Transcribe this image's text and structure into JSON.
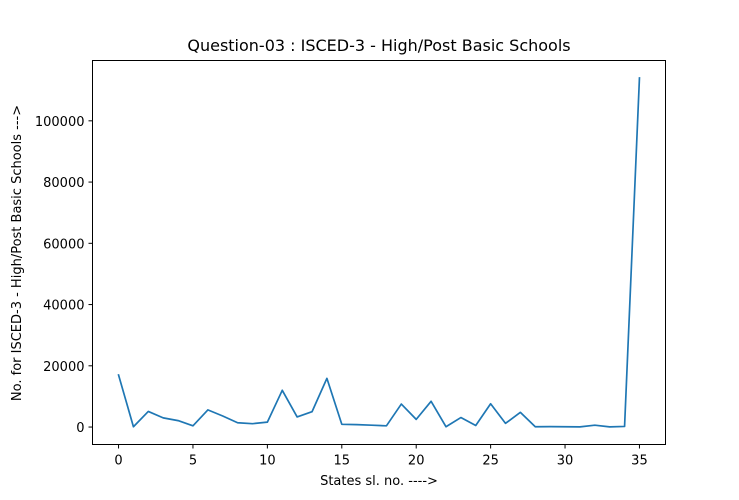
{
  "chart_data": {
    "type": "line",
    "title": "Question-03 : ISCED-3 - High/Post Basic Schools",
    "xlabel": "States sl. no. ---->",
    "ylabel": "No. for ISCED-3 - High/Post Basic Schools --->",
    "xlim": [
      -1.75,
      36.75
    ],
    "ylim": [
      -5700,
      119700
    ],
    "x_ticks": [
      0,
      5,
      10,
      15,
      20,
      25,
      30,
      35
    ],
    "x_tick_labels": [
      "0",
      "5",
      "10",
      "15",
      "20",
      "25",
      "30",
      "35"
    ],
    "y_ticks": [
      0,
      20000,
      40000,
      60000,
      80000,
      100000
    ],
    "y_tick_labels": [
      "0",
      "20000",
      "40000",
      "60000",
      "80000",
      "100000"
    ],
    "grid": false,
    "color": "#1f77b4",
    "series": [
      {
        "x": [
          0,
          1,
          2,
          3,
          4,
          5,
          6,
          7,
          8,
          9,
          10,
          11,
          12,
          13,
          14,
          15,
          16,
          17,
          18,
          19,
          20,
          21,
          22,
          23,
          24,
          25,
          26,
          27,
          28,
          29,
          30,
          31,
          32,
          33,
          34,
          35
        ],
        "values": [
          17000,
          100,
          5100,
          3000,
          2100,
          400,
          5600,
          3600,
          1400,
          1100,
          1600,
          12000,
          3300,
          5000,
          15900,
          900,
          800,
          600,
          400,
          7500,
          2500,
          8400,
          100,
          3100,
          500,
          7600,
          1200,
          4800,
          100,
          150,
          100,
          50,
          600,
          50,
          200,
          114000
        ]
      }
    ]
  }
}
